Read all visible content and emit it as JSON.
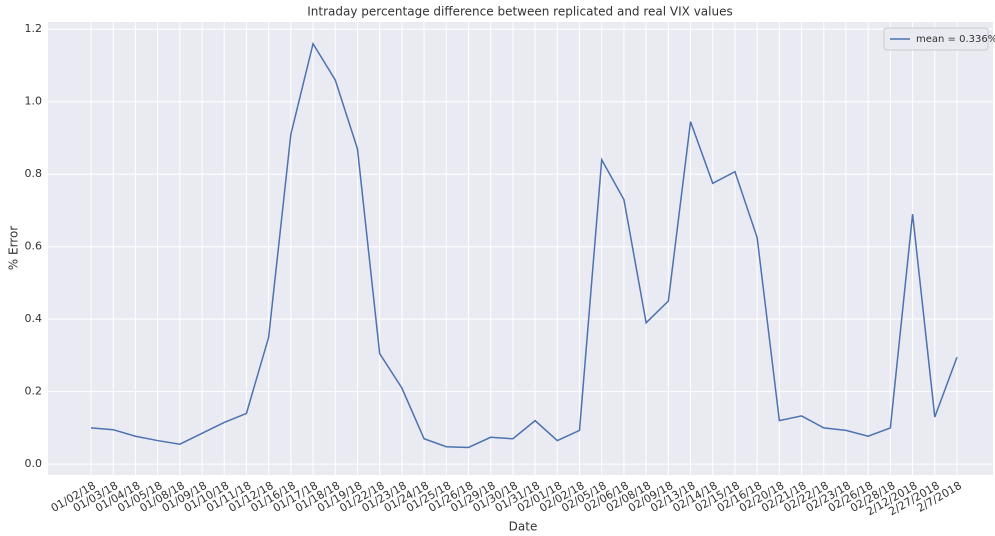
{
  "chart_data": {
    "type": "line",
    "title": "Intraday percentage difference between replicated and real VIX values",
    "x_label": "Date",
    "y_label": "% Error",
    "categories": [
      "01/02/18",
      "01/03/18",
      "01/04/18",
      "01/05/18",
      "01/08/18",
      "01/09/18",
      "01/10/18",
      "01/11/18",
      "01/12/18",
      "01/16/18",
      "01/17/18",
      "01/18/18",
      "01/19/18",
      "01/22/18",
      "01/23/18",
      "01/24/18",
      "01/25/18",
      "01/26/18",
      "01/29/18",
      "01/30/18",
      "01/31/18",
      "02/01/18",
      "02/02/18",
      "02/05/18",
      "02/06/18",
      "02/08/18",
      "02/09/18",
      "02/13/18",
      "02/14/18",
      "02/15/18",
      "02/16/18",
      "02/20/18",
      "02/21/18",
      "02/22/18",
      "02/23/18",
      "02/26/18",
      "02/28/18",
      "2/12/2018",
      "2/27/2018",
      "2/7/2018"
    ],
    "series": [
      {
        "name": "mean = 0.336%",
        "color": "#4c72b0",
        "values": [
          0.1,
          0.095,
          0.077,
          0.065,
          0.055,
          0.085,
          0.115,
          0.14,
          0.35,
          0.91,
          1.16,
          1.06,
          0.87,
          0.305,
          0.21,
          0.07,
          0.048,
          0.046,
          0.074,
          0.07,
          0.12,
          0.065,
          0.093,
          0.84,
          0.73,
          0.39,
          0.45,
          0.945,
          0.775,
          0.807,
          0.625,
          0.12,
          0.133,
          0.1,
          0.093,
          0.077,
          0.1,
          0.69,
          0.13,
          0.295
        ]
      }
    ],
    "ylim": [
      -0.03,
      1.22
    ],
    "yticks": [
      {
        "value": 0,
        "label": "0.0"
      },
      0.2,
      0.4,
      0.6,
      0.8,
      {
        "value": 1,
        "label": "1.0"
      },
      1.2
    ],
    "grid": true,
    "legend": "upper right"
  }
}
